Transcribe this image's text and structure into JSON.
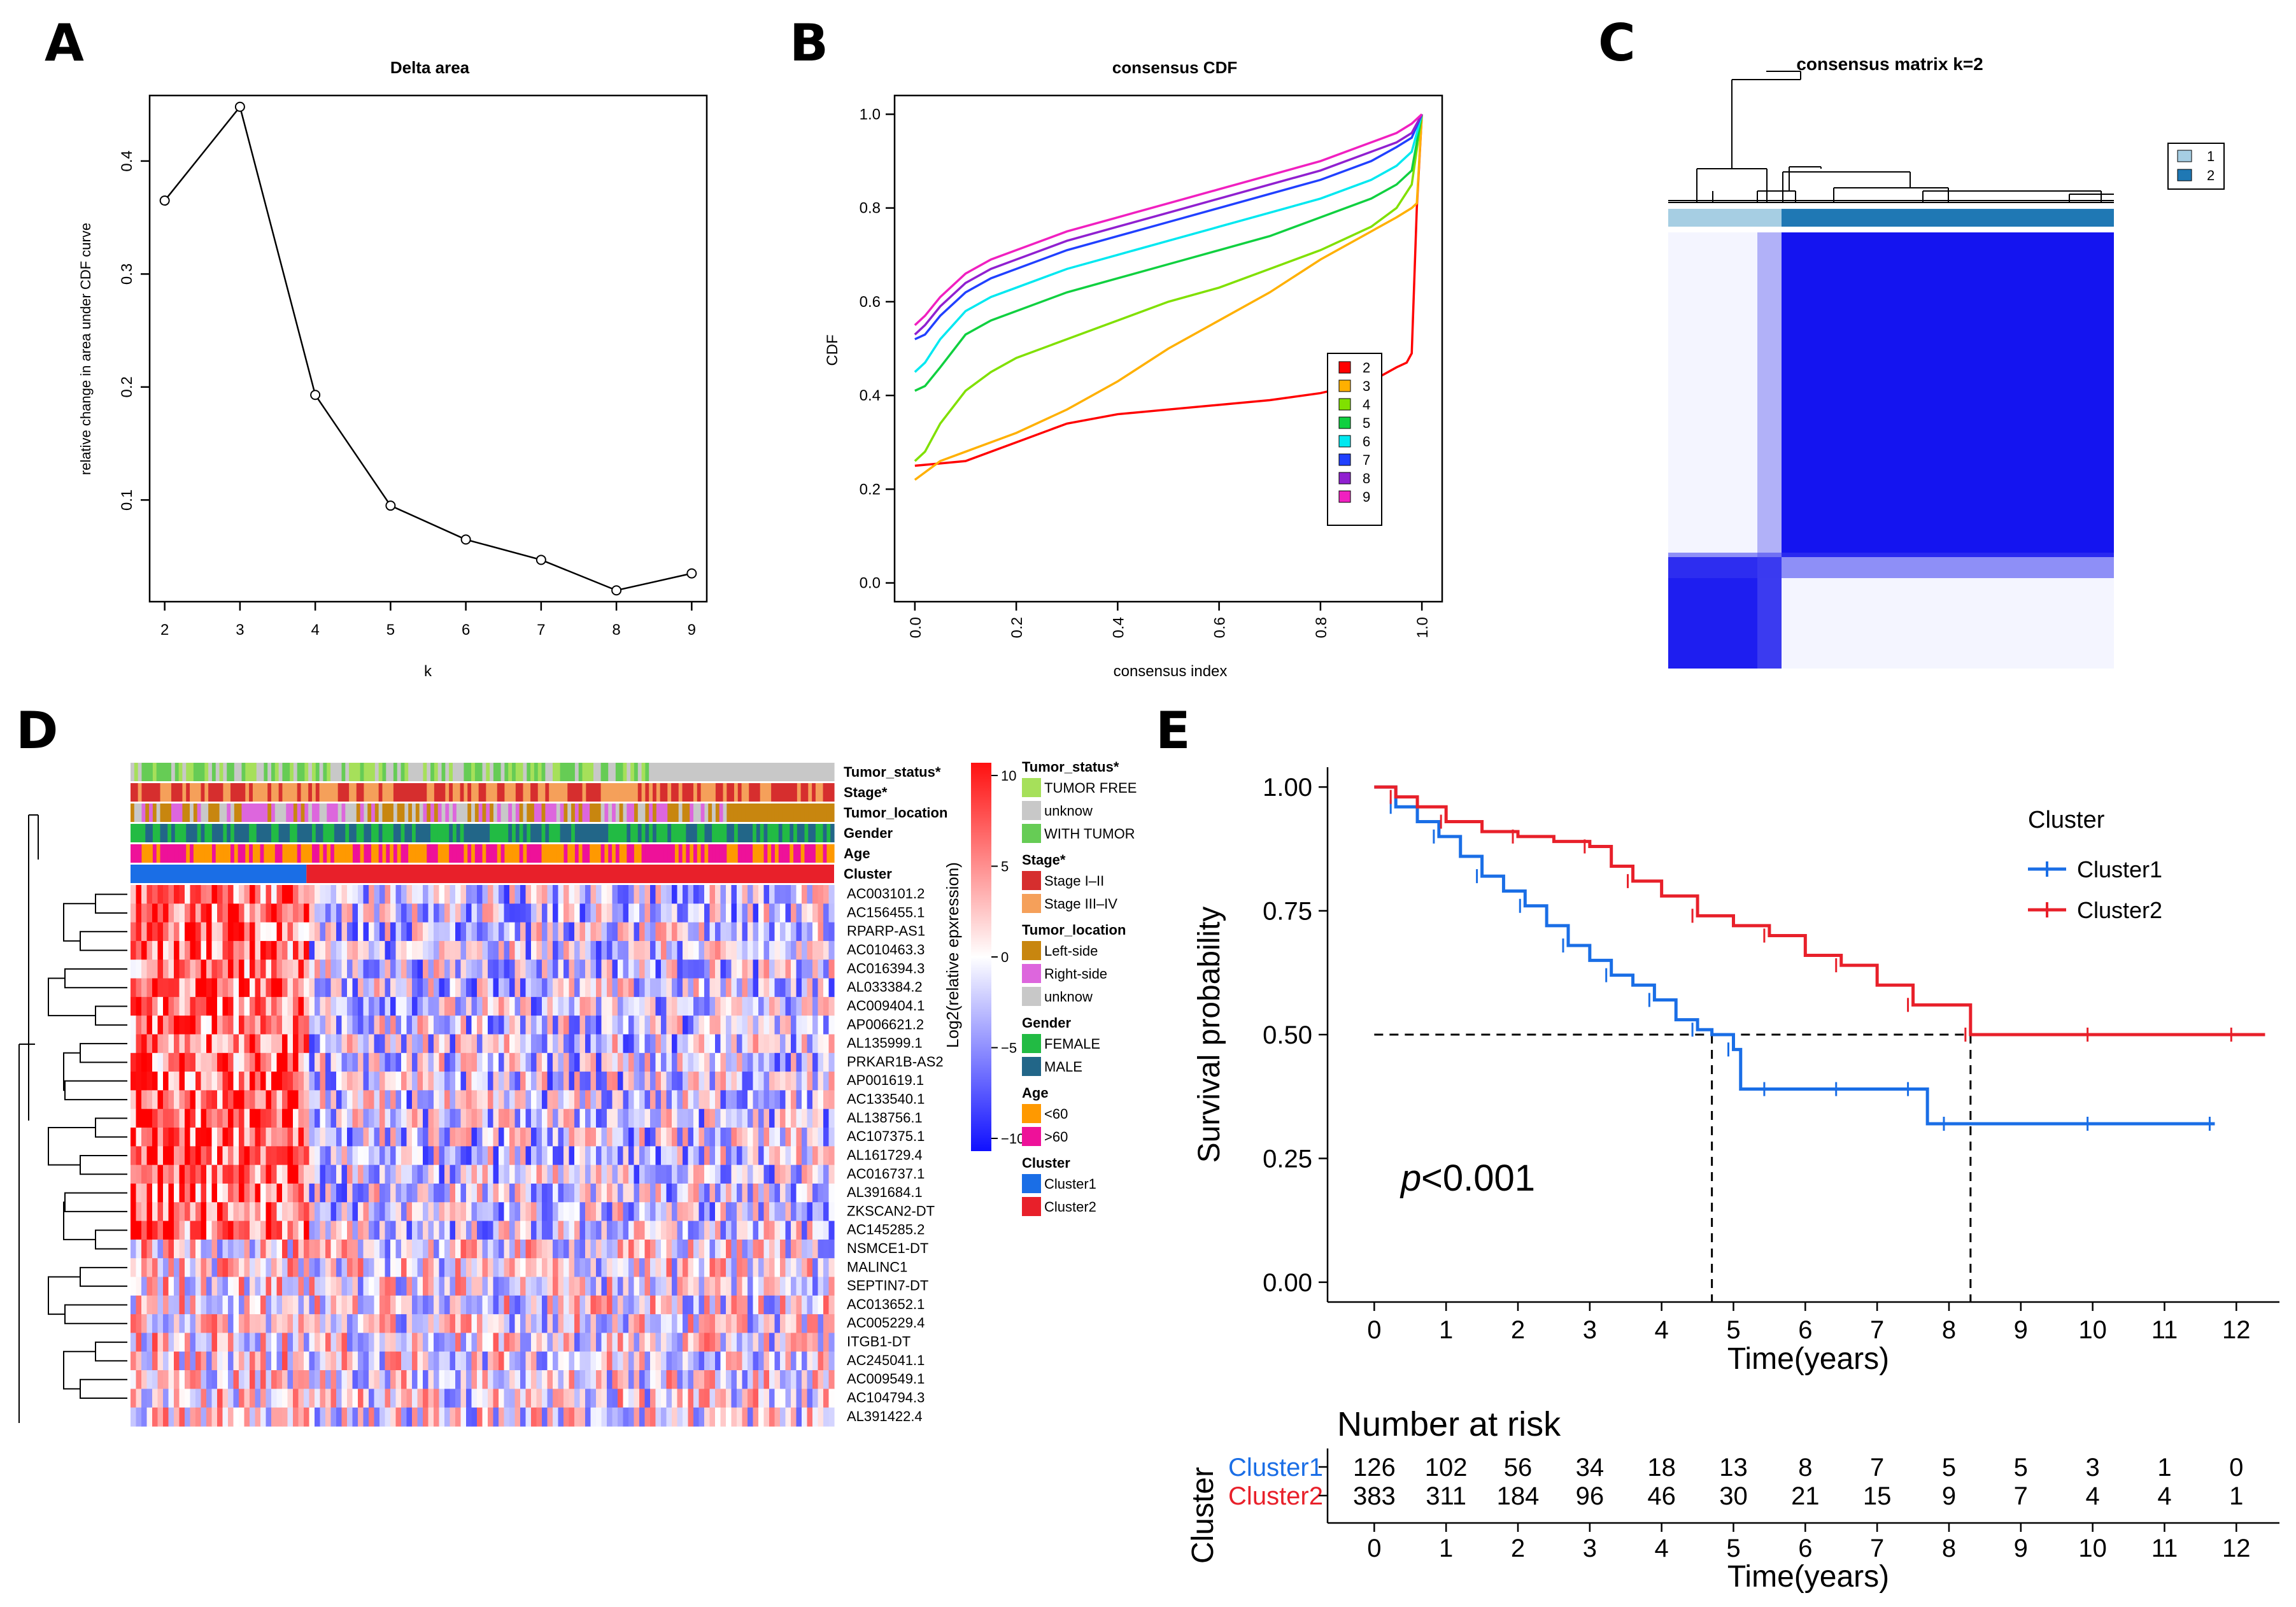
{
  "panels": {
    "A": "A",
    "B": "B",
    "C": "C",
    "D": "D",
    "E": "E"
  },
  "chart_data": [
    {
      "id": "A",
      "type": "line",
      "title": "Delta area",
      "xlabel": "k",
      "ylabel": "relative change in area under CDF curve",
      "x": [
        2,
        3,
        4,
        5,
        6,
        7,
        8,
        9
      ],
      "values": [
        0.365,
        0.448,
        0.193,
        0.095,
        0.065,
        0.047,
        0.02,
        0.035
      ],
      "xticks": [
        "2",
        "3",
        "4",
        "5",
        "6",
        "7",
        "8",
        "9"
      ],
      "yticks": [
        "0.1",
        "0.2",
        "0.3",
        "0.4"
      ],
      "xlim": [
        1.8,
        9.2
      ],
      "ylim": [
        0.01,
        0.458
      ]
    },
    {
      "id": "B",
      "type": "line",
      "title": "consensus CDF",
      "xlabel": "consensus index",
      "ylabel": "CDF",
      "xticks": [
        "0.0",
        "0.2",
        "0.4",
        "0.6",
        "0.8",
        "1.0"
      ],
      "yticks": [
        "0.0",
        "0.2",
        "0.4",
        "0.6",
        "0.8",
        "1.0"
      ],
      "xlim": [
        -0.04,
        1.04
      ],
      "ylim": [
        -0.04,
        1.04
      ],
      "legend": [
        "2",
        "3",
        "4",
        "5",
        "6",
        "7",
        "8",
        "9"
      ],
      "series": [
        {
          "name": "2",
          "color": "#ff0000",
          "x": [
            0,
            0.05,
            0.1,
            0.2,
            0.3,
            0.4,
            0.5,
            0.6,
            0.7,
            0.8,
            0.9,
            0.95,
            0.97,
            0.98,
            0.99,
            1.0
          ],
          "values": [
            0.25,
            0.255,
            0.26,
            0.3,
            0.34,
            0.36,
            0.37,
            0.38,
            0.39,
            0.405,
            0.43,
            0.46,
            0.47,
            0.49,
            0.8,
            1.0
          ]
        },
        {
          "name": "3",
          "color": "#ffb000",
          "x": [
            0,
            0.05,
            0.1,
            0.2,
            0.3,
            0.4,
            0.5,
            0.6,
            0.7,
            0.8,
            0.9,
            0.95,
            0.98,
            0.99,
            1.0
          ],
          "values": [
            0.22,
            0.26,
            0.28,
            0.32,
            0.37,
            0.43,
            0.5,
            0.56,
            0.62,
            0.69,
            0.75,
            0.78,
            0.8,
            0.81,
            1.0
          ]
        },
        {
          "name": "4",
          "color": "#80e000",
          "x": [
            0,
            0.02,
            0.05,
            0.1,
            0.15,
            0.2,
            0.3,
            0.4,
            0.5,
            0.6,
            0.7,
            0.8,
            0.9,
            0.95,
            0.98,
            1.0
          ],
          "values": [
            0.26,
            0.28,
            0.34,
            0.41,
            0.45,
            0.48,
            0.52,
            0.56,
            0.6,
            0.63,
            0.67,
            0.71,
            0.76,
            0.8,
            0.85,
            1.0
          ]
        },
        {
          "name": "5",
          "color": "#10d040",
          "x": [
            0,
            0.02,
            0.05,
            0.1,
            0.15,
            0.2,
            0.3,
            0.4,
            0.5,
            0.6,
            0.7,
            0.8,
            0.9,
            0.95,
            0.98,
            1.0
          ],
          "values": [
            0.41,
            0.42,
            0.46,
            0.53,
            0.56,
            0.58,
            0.62,
            0.65,
            0.68,
            0.71,
            0.74,
            0.78,
            0.82,
            0.85,
            0.88,
            1.0
          ]
        },
        {
          "name": "6",
          "color": "#00e8f0",
          "x": [
            0,
            0.02,
            0.05,
            0.1,
            0.15,
            0.2,
            0.3,
            0.4,
            0.5,
            0.6,
            0.7,
            0.8,
            0.9,
            0.95,
            0.98,
            1.0
          ],
          "values": [
            0.45,
            0.47,
            0.52,
            0.58,
            0.61,
            0.63,
            0.67,
            0.7,
            0.73,
            0.76,
            0.79,
            0.82,
            0.86,
            0.89,
            0.92,
            1.0
          ]
        },
        {
          "name": "7",
          "color": "#2040ff",
          "x": [
            0,
            0.02,
            0.05,
            0.1,
            0.15,
            0.2,
            0.3,
            0.4,
            0.5,
            0.6,
            0.7,
            0.8,
            0.9,
            0.95,
            0.98,
            1.0
          ],
          "values": [
            0.52,
            0.53,
            0.57,
            0.62,
            0.65,
            0.67,
            0.71,
            0.74,
            0.77,
            0.8,
            0.83,
            0.86,
            0.9,
            0.93,
            0.95,
            1.0
          ]
        },
        {
          "name": "8",
          "color": "#9020d0",
          "x": [
            0,
            0.02,
            0.05,
            0.1,
            0.15,
            0.2,
            0.3,
            0.4,
            0.5,
            0.6,
            0.7,
            0.8,
            0.9,
            0.95,
            0.98,
            1.0
          ],
          "values": [
            0.53,
            0.55,
            0.59,
            0.64,
            0.67,
            0.69,
            0.73,
            0.76,
            0.79,
            0.82,
            0.85,
            0.88,
            0.92,
            0.94,
            0.96,
            1.0
          ]
        },
        {
          "name": "9",
          "color": "#f020c0",
          "x": [
            0,
            0.02,
            0.05,
            0.1,
            0.15,
            0.2,
            0.3,
            0.4,
            0.5,
            0.6,
            0.7,
            0.8,
            0.9,
            0.95,
            0.98,
            1.0
          ],
          "values": [
            0.55,
            0.57,
            0.61,
            0.66,
            0.69,
            0.71,
            0.75,
            0.78,
            0.81,
            0.84,
            0.87,
            0.9,
            0.94,
            0.96,
            0.98,
            1.0
          ]
        }
      ]
    },
    {
      "id": "C",
      "type": "heatmap",
      "title": "consensus matrix k=2",
      "legend": [
        {
          "label": "1",
          "color": "#a6cee3"
        },
        {
          "label": "2",
          "color": "#1f78b4"
        }
      ],
      "cluster_fractions": [
        0.25,
        0.75
      ]
    },
    {
      "id": "D",
      "type": "heatmap",
      "annotation_tracks": [
        "Tumor_status*",
        "Stage*",
        "Tumor_location",
        "Gender",
        "Age",
        "Cluster"
      ],
      "genes": [
        "AC003101.2",
        "AC156455.1",
        "RPARP-AS1",
        "AC010463.3",
        "AC016394.3",
        "AL033384.2",
        "AC009404.1",
        "AP006621.2",
        "AL135999.1",
        "PRKAR1B-AS2",
        "AP001619.1",
        "AC133540.1",
        "AL138756.1",
        "AC107375.1",
        "AL161729.4",
        "AC016737.1",
        "AL391684.1",
        "ZKSCAN2-DT",
        "AC145285.2",
        "NSMCE1-DT",
        "MALINC1",
        "SEPTIN7-DT",
        "AC013652.1",
        "AC005229.4",
        "ITGB1-DT",
        "AC245041.1",
        "AC009549.1",
        "AC104794.3",
        "AL391422.4"
      ],
      "colorbar": {
        "label": "Log2(relative epxression)",
        "ticks": [
          "10",
          "5",
          "0",
          "−5",
          "−10"
        ],
        "range": [
          -10,
          10
        ]
      },
      "legends": [
        {
          "title": "Tumor_status*",
          "items": [
            {
              "label": "TUMOR FREE",
              "color": "#a6e05a"
            },
            {
              "label": "unknow",
              "color": "#c8c8c8"
            },
            {
              "label": "WITH TUMOR",
              "color": "#66cc55"
            }
          ]
        },
        {
          "title": "Stage*",
          "items": [
            {
              "label": "Stage I–II",
              "color": "#d62e2e"
            },
            {
              "label": "Stage III–IV",
              "color": "#f5a05a"
            }
          ]
        },
        {
          "title": "Tumor_location",
          "items": [
            {
              "label": "Left-side",
              "color": "#c8860f"
            },
            {
              "label": "Right-side",
              "color": "#dd66dd"
            },
            {
              "label": "unknow",
              "color": "#c8c8c8"
            }
          ]
        },
        {
          "title": "Gender",
          "items": [
            {
              "label": "FEMALE",
              "color": "#22bb44"
            },
            {
              "label": "MALE",
              "color": "#226688"
            }
          ]
        },
        {
          "title": "Age",
          "items": [
            {
              "label": "<60",
              "color": "#ff9900"
            },
            {
              "label": ">60",
              "color": "#ee1199"
            }
          ]
        },
        {
          "title": "Cluster",
          "items": [
            {
              "label": "Cluster1",
              "color": "#1a6ee6"
            },
            {
              "label": "Cluster2",
              "color": "#e8202a"
            }
          ]
        }
      ],
      "cluster_fractions": [
        0.25,
        0.75
      ]
    },
    {
      "id": "E",
      "type": "line",
      "xlabel": "Time(years)",
      "ylabel": "Survival probability",
      "xticks": [
        "0",
        "1",
        "2",
        "3",
        "4",
        "5",
        "6",
        "7",
        "8",
        "9",
        "10",
        "11",
        "12"
      ],
      "yticks": [
        "0.00",
        "0.25",
        "0.50",
        "0.75",
        "1.00"
      ],
      "xlim": [
        -0.65,
        12.6
      ],
      "ylim": [
        -0.04,
        1.04
      ],
      "legend_title": "Cluster",
      "pvalue_prefix": "p",
      "pvalue_rest": "<0.001",
      "median_lines": [
        4.7,
        8.3
      ],
      "series": [
        {
          "name": "Cluster1",
          "color": "#1a6ee6",
          "x": [
            0,
            0.3,
            0.6,
            0.9,
            1.2,
            1.5,
            1.8,
            2.1,
            2.4,
            2.7,
            3.0,
            3.3,
            3.6,
            3.9,
            4.2,
            4.5,
            4.7,
            5.0,
            5.1,
            5.5,
            6.0,
            6.5,
            7.0,
            7.5,
            7.7,
            8.0,
            9.0,
            10.0,
            11.0,
            11.7
          ],
          "values": [
            1,
            0.96,
            0.93,
            0.9,
            0.86,
            0.82,
            0.79,
            0.76,
            0.72,
            0.68,
            0.65,
            0.62,
            0.6,
            0.57,
            0.53,
            0.51,
            0.5,
            0.47,
            0.39,
            0.39,
            0.39,
            0.39,
            0.39,
            0.39,
            0.32,
            0.32,
            0.32,
            0.32,
            0.32,
            0.32
          ]
        },
        {
          "name": "Cluster2",
          "color": "#e8202a",
          "x": [
            0,
            0.3,
            0.6,
            1.0,
            1.5,
            2.0,
            2.5,
            3.0,
            3.3,
            3.6,
            4.0,
            4.5,
            5.0,
            5.5,
            6.0,
            6.5,
            7.0,
            7.5,
            8.0,
            8.3,
            9.0,
            10.0,
            11.0,
            12.0,
            12.4
          ],
          "values": [
            1,
            0.98,
            0.96,
            0.93,
            0.91,
            0.9,
            0.89,
            0.88,
            0.84,
            0.81,
            0.78,
            0.74,
            0.72,
            0.7,
            0.66,
            0.64,
            0.6,
            0.56,
            0.56,
            0.5,
            0.5,
            0.5,
            0.5,
            0.5,
            0.5
          ]
        }
      ],
      "risk_table": {
        "title": "Number at risk",
        "ylabel": "Cluster",
        "xlabel": "Time(years)",
        "rows": [
          {
            "name": "Cluster1",
            "color": "#1a6ee6",
            "values": [
              126,
              102,
              56,
              34,
              18,
              13,
              8,
              7,
              5,
              5,
              3,
              1,
              0
            ]
          },
          {
            "name": "Cluster2",
            "color": "#e8202a",
            "values": [
              383,
              311,
              184,
              96,
              46,
              30,
              21,
              15,
              9,
              7,
              4,
              4,
              1
            ]
          }
        ]
      }
    }
  ]
}
